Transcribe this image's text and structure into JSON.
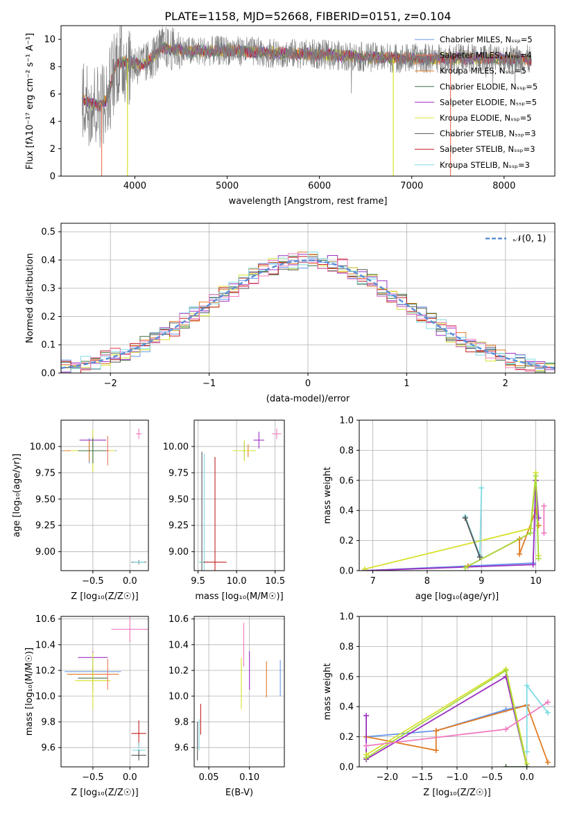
{
  "colors": {
    "chabrier_miles": "#6495ed",
    "salpeter_miles": "#e9765c",
    "kroupa_miles": "#e07b22",
    "chabrier_elodie": "#3f6e3f",
    "salpeter_elodie": "#9b2fc1",
    "kroupa_elodie": "#d7e12a",
    "chabrier_stelib": "#555555",
    "salpeter_stelib": "#c41e1e",
    "kroupa_stelib": "#7fdbe3",
    "pink": "#f07bbf",
    "green": "#a6d83a",
    "gaussian": "#5b8fd6"
  },
  "chart_data": [
    {
      "id": "spectrum",
      "type": "line",
      "title": "PLATE=1158, MJD=52668, FIBERID=0151, z=0.104",
      "xlabel": "wavelength [Angstrom, rest frame]",
      "ylabel": "Flux [fλ10⁻¹⁷ erg cm⁻² s⁻¹ A⁻¹]",
      "xlim": [
        3200,
        8550
      ],
      "ylim": [
        0,
        11
      ],
      "xticks": [
        "4000",
        "5000",
        "6000",
        "7000",
        "8000"
      ],
      "yticks": [
        "0",
        "2",
        "4",
        "6",
        "8",
        "10"
      ],
      "grid": false,
      "legend_position": "top-right",
      "series": [
        {
          "name": "Chabrier MILES, Nₛₛₚ=5",
          "color": "#6495ed"
        },
        {
          "name": "Salpeter MILES, Nₛₛₚ=4",
          "color": "#e9765c"
        },
        {
          "name": "Kroupa MILES, Nₛₛₚ=5",
          "color": "#e07b22"
        },
        {
          "name": "Chabrier ELODIE, Nₛₛₚ=5",
          "color": "#3f6e3f"
        },
        {
          "name": "Salpeter ELODIE, Nₛₛₚ=5",
          "color": "#9b2fc1"
        },
        {
          "name": "Kroupa ELODIE, Nₛₛₚ=5",
          "color": "#d7e12a"
        },
        {
          "name": "Chabrier STELIB, Nₛₛₚ=3",
          "color": "#555555"
        },
        {
          "name": "Salpeter STELIB, Nₛₛₚ=3",
          "color": "#c41e1e"
        },
        {
          "name": "Kroupa STELIB, Nₛₛₚ=3",
          "color": "#7fdbe3"
        }
      ],
      "continuum": {
        "x": [
          3430,
          3600,
          3700,
          3800,
          3950,
          4100,
          4300,
          4600,
          5000,
          5500,
          6000,
          6500,
          7000,
          7500,
          8000,
          8300
        ],
        "y": [
          5.6,
          5.1,
          5.6,
          8.3,
          8.3,
          8.1,
          9.4,
          9.1,
          9.2,
          9.0,
          8.9,
          8.7,
          8.6,
          8.6,
          8.6,
          8.5
        ]
      }
    },
    {
      "id": "residuals",
      "type": "histogram",
      "xlabel": "(data-model)/error",
      "ylabel": "Normed distribution",
      "xlim": [
        -2.5,
        2.5
      ],
      "ylim": [
        0,
        0.53
      ],
      "xticks": [
        "−2",
        "−1",
        "0",
        "1",
        "2"
      ],
      "yticks": [
        "0.0",
        "0.1",
        "0.2",
        "0.3",
        "0.4",
        "0.5"
      ],
      "grid": true,
      "legend_position": "top-right",
      "legend": "𝒩(0, 1)",
      "bin_width": 0.1
    },
    {
      "id": "age_vs_z",
      "type": "scatter",
      "xlabel": "Z [log₁₀(Z/Z☉)]",
      "ylabel": "age  [log₁₀(age/yr)]",
      "xlim": [
        -0.93,
        0.25
      ],
      "ylim": [
        8.82,
        10.25
      ],
      "xticks": [
        "−0.5",
        "0.0"
      ],
      "yticks": [
        "9.00",
        "9.25",
        "9.50",
        "9.75",
        "10.00"
      ],
      "grid": true,
      "points": [
        {
          "x": -0.55,
          "y": 9.96,
          "dx": 0.37,
          "dy": 0.12,
          "color": "#6495ed"
        },
        {
          "x": -0.55,
          "y": 9.96,
          "dx": 0.35,
          "dy": 0.1,
          "color": "#e07b22"
        },
        {
          "x": -0.5,
          "y": 10.06,
          "dx": 0.18,
          "dy": 0.06,
          "color": "#9b2fc1"
        },
        {
          "x": -0.5,
          "y": 9.96,
          "dx": 0.3,
          "dy": 0.2,
          "color": "#d7e12a"
        },
        {
          "x": -0.5,
          "y": 9.96,
          "dx": 0.2,
          "dy": 0.12,
          "color": "#3f6e3f"
        },
        {
          "x": -0.3,
          "y": 9.96,
          "dx": 0.02,
          "dy": 0.14,
          "color": "#e9765c"
        },
        {
          "x": 0.12,
          "y": 10.12,
          "dx": 0.04,
          "dy": 0.05,
          "color": "#f07bbf"
        },
        {
          "x": 0.12,
          "y": 8.9,
          "dx": 0.1,
          "dy": 0.02,
          "color": "#555555"
        },
        {
          "x": 0.12,
          "y": 8.9,
          "dx": 0.08,
          "dy": 0.01,
          "color": "#7fdbe3"
        }
      ]
    },
    {
      "id": "age_vs_mass",
      "type": "scatter",
      "xlabel": "mass [log₁₀(M/M☉)]",
      "ylabel": "",
      "xlim": [
        9.45,
        10.62
      ],
      "ylim": [
        8.82,
        10.25
      ],
      "xticks": [
        "9.5",
        "10.0",
        "10.5"
      ],
      "yticks": [
        "9.00",
        "9.25",
        "9.50",
        "9.75",
        "10.00"
      ],
      "grid": true,
      "points": [
        {
          "x": 9.55,
          "y": 8.9,
          "dx": 0.03,
          "dy": 1.05,
          "color": "#555555"
        },
        {
          "x": 9.58,
          "y": 8.9,
          "dx": 0.07,
          "dy": 1.03,
          "color": "#7fdbe3"
        },
        {
          "x": 9.72,
          "y": 8.9,
          "dx": 0.15,
          "dy": 1.0,
          "color": "#c41e1e"
        },
        {
          "x": 10.1,
          "y": 9.96,
          "dx": 0.08,
          "dy": 0.08,
          "color": "#6495ed"
        },
        {
          "x": 10.15,
          "y": 9.96,
          "dx": 0.1,
          "dy": 0.06,
          "color": "#e07b22"
        },
        {
          "x": 10.1,
          "y": 9.96,
          "dx": 0.15,
          "dy": 0.1,
          "color": "#d7e12a"
        },
        {
          "x": 10.29,
          "y": 10.06,
          "dx": 0.07,
          "dy": 0.08,
          "color": "#9b2fc1"
        },
        {
          "x": 10.52,
          "y": 10.12,
          "dx": 0.06,
          "dy": 0.05,
          "color": "#f07bbf"
        }
      ]
    },
    {
      "id": "weight_vs_age",
      "type": "line",
      "xlabel": "age  [log₁₀(age/yr)]",
      "ylabel": "mass weight",
      "xlim": [
        6.75,
        10.35
      ],
      "ylim": [
        0,
        1
      ],
      "xticks": [
        "7",
        "8",
        "9",
        "10"
      ],
      "yticks": [
        "0.0",
        "0.2",
        "0.4",
        "0.6",
        "0.8",
        "1.0"
      ],
      "grid": true,
      "series": [
        {
          "color": "#6495ed",
          "x": [
            6.85,
            9.95,
            10.0
          ],
          "y": [
            0.0,
            0.05,
            0.6
          ]
        },
        {
          "color": "#e07b22",
          "x": [
            8.75,
            9.7,
            9.7,
            10.0,
            10.05
          ],
          "y": [
            0.03,
            0.21,
            0.11,
            0.4,
            0.3
          ]
        },
        {
          "color": "#9b2fc1",
          "x": [
            6.85,
            9.95,
            10.0,
            10.05
          ],
          "y": [
            0.0,
            0.04,
            0.6,
            0.35
          ]
        },
        {
          "color": "#d7e12a",
          "x": [
            6.85,
            9.9,
            10.0,
            10.05
          ],
          "y": [
            0.01,
            0.28,
            0.65,
            0.1
          ]
        },
        {
          "color": "#a6d83a",
          "x": [
            8.7,
            9.9,
            10.0,
            10.05
          ],
          "y": [
            0.02,
            0.25,
            0.63,
            0.08
          ]
        },
        {
          "color": "#7fdbe3",
          "x": [
            8.7,
            8.97,
            9.0
          ],
          "y": [
            0.36,
            0.1,
            0.55
          ]
        },
        {
          "color": "#555555",
          "x": [
            8.7,
            8.97
          ],
          "y": [
            0.35,
            0.09
          ]
        },
        {
          "color": "#f07bbf",
          "x": [
            10.15,
            10.15
          ],
          "y": [
            0.43,
            0.25
          ]
        }
      ]
    },
    {
      "id": "mass_vs_z",
      "type": "scatter",
      "xlabel": "Z [log₁₀(Z/Z☉)]",
      "ylabel": "mass [log₁₀(M/M☉)]",
      "xlim": [
        -0.93,
        0.25
      ],
      "ylim": [
        9.45,
        10.62
      ],
      "xticks": [
        "−0.5",
        "0.0"
      ],
      "yticks": [
        "9.6",
        "9.8",
        "10.0",
        "10.2",
        "10.4",
        "10.6"
      ],
      "grid": true,
      "points": [
        {
          "x": -0.5,
          "y": 10.3,
          "dx": 0.2,
          "dy": 0.05,
          "color": "#9b2fc1"
        },
        {
          "x": -0.5,
          "y": 10.19,
          "dx": 0.38,
          "dy": 0.1,
          "color": "#6495ed"
        },
        {
          "x": -0.5,
          "y": 10.17,
          "dx": 0.35,
          "dy": 0.08,
          "color": "#e07b22"
        },
        {
          "x": -0.5,
          "y": 10.14,
          "dx": 0.2,
          "dy": 0.1,
          "color": "#3f6e3f"
        },
        {
          "x": -0.5,
          "y": 10.12,
          "dx": 0.24,
          "dy": 0.22,
          "color": "#d7e12a"
        },
        {
          "x": -0.3,
          "y": 10.17,
          "dx": 0.03,
          "dy": 0.12,
          "color": "#e9765c"
        },
        {
          "x": 0.0,
          "y": 10.52,
          "dx": 0.25,
          "dy": 0.1,
          "color": "#f07bbf"
        },
        {
          "x": 0.12,
          "y": 9.71,
          "dx": 0.1,
          "dy": 0.1,
          "color": "#c41e1e"
        },
        {
          "x": 0.12,
          "y": 9.58,
          "dx": 0.09,
          "dy": 0.06,
          "color": "#7fdbe3"
        },
        {
          "x": 0.12,
          "y": 9.54,
          "dx": 0.1,
          "dy": 0.04,
          "color": "#555555"
        }
      ]
    },
    {
      "id": "mass_vs_ebv",
      "type": "scatter",
      "xlabel": "E(B-V)",
      "ylabel": "",
      "xlim": [
        0.032,
        0.143
      ],
      "ylim": [
        9.45,
        10.62
      ],
      "xticks": [
        "0.05",
        "0.10"
      ],
      "yticks": [
        "9.6",
        "9.8",
        "10.0",
        "10.2",
        "10.4",
        "10.6"
      ],
      "grid": true,
      "points": [
        {
          "x": 0.036,
          "y": 9.65,
          "dx": 0.0,
          "dy": 0.15,
          "color": "#555555"
        },
        {
          "x": 0.038,
          "y": 9.7,
          "dx": 0.0,
          "dy": 0.12,
          "color": "#7fdbe3"
        },
        {
          "x": 0.04,
          "y": 9.82,
          "dx": 0.0,
          "dy": 0.12,
          "color": "#c41e1e"
        },
        {
          "x": 0.09,
          "y": 10.1,
          "dx": 0.0,
          "dy": 0.2,
          "color": "#d7e12a"
        },
        {
          "x": 0.093,
          "y": 10.4,
          "dx": 0.0,
          "dy": 0.17,
          "color": "#f07bbf"
        },
        {
          "x": 0.1,
          "y": 10.2,
          "dx": 0.0,
          "dy": 0.15,
          "color": "#9b2fc1"
        },
        {
          "x": 0.121,
          "y": 10.13,
          "dx": 0.0,
          "dy": 0.14,
          "color": "#e07b22"
        },
        {
          "x": 0.138,
          "y": 10.14,
          "dx": 0.0,
          "dy": 0.14,
          "color": "#6495ed"
        }
      ]
    },
    {
      "id": "weight_vs_z",
      "type": "line",
      "xlabel": "Z [log₁₀(Z/Z☉)]",
      "ylabel": "mass weight",
      "xlim": [
        -2.4,
        0.4
      ],
      "ylim": [
        0,
        1
      ],
      "xticks": [
        "−2.0",
        "−1.5",
        "−1.0",
        "−0.5",
        "0.0"
      ],
      "yticks": [
        "0.0",
        "0.2",
        "0.4",
        "0.6",
        "0.8",
        "1.0"
      ],
      "grid": true,
      "series": [
        {
          "color": "#6495ed",
          "x": [
            -2.3,
            -1.3,
            -0.3,
            0.0
          ],
          "y": [
            0.2,
            0.24,
            0.38,
            0.41
          ]
        },
        {
          "color": "#e07b22",
          "x": [
            -2.3,
            -1.3,
            -1.3,
            0.0,
            0.3
          ],
          "y": [
            0.2,
            0.11,
            0.24,
            0.41,
            0.03
          ]
        },
        {
          "color": "#9b2fc1",
          "x": [
            -2.3,
            -2.3,
            -0.3,
            0.0
          ],
          "y": [
            0.34,
            0.05,
            0.6,
            0.0
          ]
        },
        {
          "color": "#d7e12a",
          "x": [
            -2.3,
            -0.3,
            0.0
          ],
          "y": [
            0.08,
            0.65,
            0.02
          ]
        },
        {
          "color": "#a6d83a",
          "x": [
            -2.3,
            -0.3,
            0.0
          ],
          "y": [
            0.06,
            0.64,
            0.0
          ]
        },
        {
          "color": "#f07bbf",
          "x": [
            -2.3,
            -0.3,
            0.3
          ],
          "y": [
            0.14,
            0.25,
            0.43
          ]
        },
        {
          "color": "#7fdbe3",
          "x": [
            0.0,
            0.0,
            0.3
          ],
          "y": [
            0.1,
            0.54,
            0.36
          ]
        },
        {
          "color": "#3f6e3f",
          "x": [
            -0.3,
            0.0
          ],
          "y": [
            0.0,
            0.0
          ]
        }
      ]
    }
  ]
}
